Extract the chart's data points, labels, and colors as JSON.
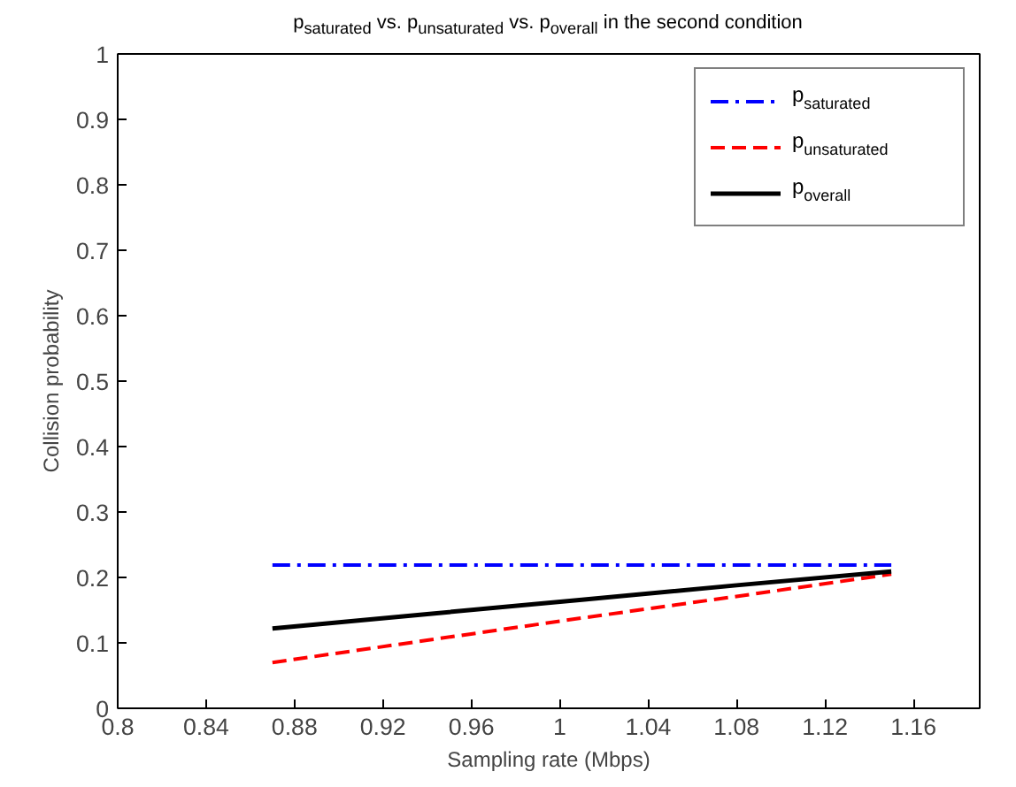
{
  "chart_data": {
    "type": "line",
    "title": "p$_{saturated}$ vs. p$_{unsaturated}$ vs. p$_{overall}$ in the second condition",
    "xlabel": "Sampling rate (Mbps)",
    "ylabel": "Collision probability",
    "x": [
      0.87,
      0.94,
      1.01,
      1.08,
      1.15
    ],
    "series": [
      {
        "name": "p$_{saturated}$",
        "color": "#0000ff",
        "line_style": "dashdot",
        "values": [
          0.219,
          0.219,
          0.219,
          0.219,
          0.219
        ]
      },
      {
        "name": "p$_{unsaturated}$",
        "color": "#ff0000",
        "line_style": "dashed",
        "values": [
          0.07,
          0.104,
          0.138,
          0.171,
          0.205
        ]
      },
      {
        "name": "p$_{overall}$",
        "color": "#000000",
        "line_style": "solid",
        "values": [
          0.122,
          0.144,
          0.166,
          0.188,
          0.209
        ]
      }
    ],
    "xlim": [
      0.8,
      1.19
    ],
    "xticks": [
      0.8,
      0.84,
      0.88,
      0.92,
      0.96,
      1,
      1.04,
      1.08,
      1.12,
      1.16
    ],
    "ylim": [
      0,
      1
    ],
    "yticks": [
      0,
      0.1,
      0.2,
      0.3,
      0.4,
      0.5,
      0.6,
      0.7,
      0.8,
      0.9,
      1
    ],
    "grid": false,
    "legend": "top right"
  }
}
